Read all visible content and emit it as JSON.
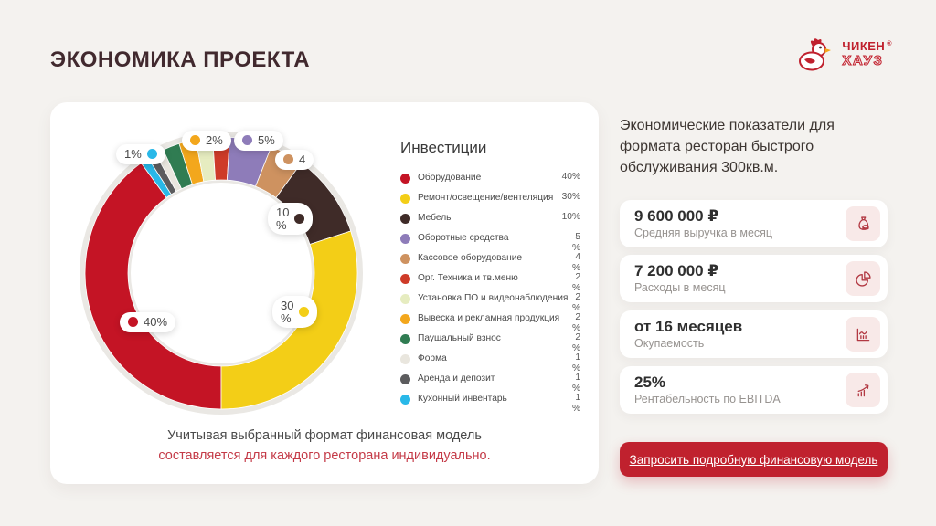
{
  "page": {
    "title": "ЭКОНОМИКА ПРОЕКТА",
    "logo": {
      "line1": "ЧИКЕН",
      "reg": "®",
      "line2": "ХАУЗ"
    }
  },
  "chart_data": {
    "type": "pie",
    "subtype": "donut",
    "title": "Инвестиции",
    "segments": [
      {
        "label": "Оборудование",
        "value": 40,
        "color": "#C41425",
        "display": "40%"
      },
      {
        "label": "Ремонт/освещение/вентеляция",
        "value": 30,
        "color": "#F3CE17",
        "display": "30%"
      },
      {
        "label": "Мебель",
        "value": 10,
        "color": "#3F2B28",
        "display": "10%"
      },
      {
        "label": "Оборотные средства",
        "value": 5,
        "color": "#8E7CB9",
        "display": "5\n%"
      },
      {
        "label": "Кассовое оборудование",
        "value": 4,
        "color": "#CE9260",
        "display": "4\n%"
      },
      {
        "label": "Орг. Техника и тв.меню",
        "value": 2,
        "color": "#CE3B28",
        "display": "2\n%"
      },
      {
        "label": "Установка ПО и видеонаблюдения",
        "value": 2,
        "color": "#E6ECC0",
        "display": "2\n%"
      },
      {
        "label": "Вывеска и рекламная продукция",
        "value": 2,
        "color": "#F3A71C",
        "display": "2\n%"
      },
      {
        "label": "Паушальный взнос",
        "value": 2,
        "color": "#307C52",
        "display": "2\n%"
      },
      {
        "label": "Форма",
        "value": 1,
        "color": "#E9E6DE",
        "display": "1\n%"
      },
      {
        "label": "Аренда и депозит",
        "value": 1,
        "color": "#5C5C5E",
        "display": "1\n%"
      },
      {
        "label": "Кухонный инвентарь",
        "value": 1,
        "color": "#29B8E8",
        "display": "1\n%"
      }
    ],
    "draw": {
      "start_angle_deg": 180,
      "direction": "clockwise",
      "order": [
        0,
        11,
        10,
        9,
        8,
        7,
        6,
        5,
        3,
        4,
        2,
        1
      ]
    },
    "callouts": [
      {
        "text": "40%",
        "segment": 0,
        "dot_side": "left"
      },
      {
        "text": "30\n%",
        "segment": 1,
        "dot_side": "right"
      },
      {
        "text": "10\n%",
        "segment": 2,
        "dot_side": "right"
      },
      {
        "text": "5%",
        "segment": 3,
        "dot_side": "left"
      },
      {
        "text": "4",
        "segment": 4,
        "dot_side": "left"
      },
      {
        "text": "2%",
        "segment": 7,
        "dot_side": "left"
      },
      {
        "text": "1%",
        "segment": 11,
        "dot_side": "right"
      }
    ],
    "note_line1": "Учитывая выбранный формат финансовая модель",
    "note_line2": "составляется для каждого ресторана индивидуально."
  },
  "panel": {
    "heading": "Экономические показатели для\nформата  ресторан быстрого\nобслуживания 300кв.м.",
    "cards": [
      {
        "value": "9 600 000 ₽",
        "label": "Средняя выручка в месяц",
        "icon": "money-bag"
      },
      {
        "value": "7 200 000 ₽",
        "label": "Расходы в месяц",
        "icon": "pie-chart"
      },
      {
        "value": "от 16 месяцев",
        "label": "Окупаемость",
        "icon": "payback-chart"
      },
      {
        "value": "25%",
        "label": "Рентабельность по EBITDA",
        "icon": "growth-arrow"
      }
    ],
    "button_label": "Запросить подробную финансовую модель"
  },
  "colors": {
    "accent_red": "#C0212E",
    "background": "#F4F2EF",
    "donut_shadow_ring": "#EAE8E4",
    "note_red": "#C43A47"
  }
}
